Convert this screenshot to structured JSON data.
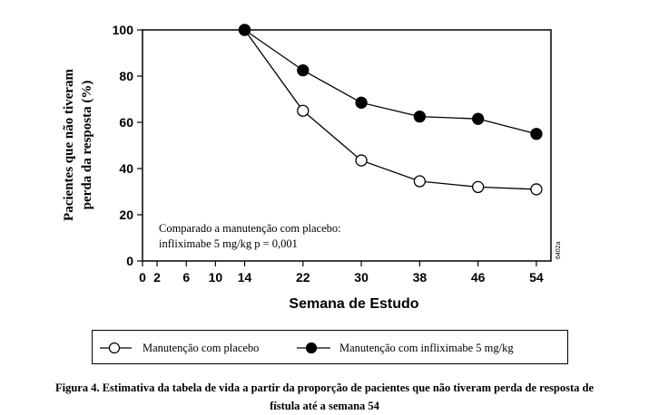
{
  "chart_data": {
    "type": "line",
    "xlabel": "Semana de Estudo",
    "ylabel": [
      "Pacientes que não tiveram",
      "perda da resposta (%)"
    ],
    "x_ticks": [
      0,
      2,
      6,
      10,
      14,
      22,
      30,
      38,
      46,
      54
    ],
    "y_ticks": [
      0,
      20,
      40,
      60,
      80,
      100
    ],
    "xlim": [
      0,
      56
    ],
    "ylim": [
      0,
      100
    ],
    "series": [
      {
        "name": "Manutenção com placebo",
        "marker": "open-circle",
        "x": [
          14,
          22,
          30,
          38,
          46,
          54
        ],
        "y": [
          100,
          65,
          43.5,
          34.5,
          32,
          31
        ]
      },
      {
        "name": "Manutenção com infliximabe 5 mg/kg",
        "marker": "filled-circle",
        "x": [
          14,
          22,
          30,
          38,
          46,
          54
        ],
        "y": [
          100,
          82.5,
          68.5,
          62.5,
          61.5,
          55
        ]
      }
    ],
    "annotation": [
      "Comparado a manutenção com placebo:",
      "infliximabe  5 mg/kg  p = 0,001"
    ],
    "side_code": "6402a",
    "colors": {
      "line": "#000000",
      "open_marker_fill": "#ffffff",
      "filled_marker_fill": "#000000"
    }
  },
  "caption": {
    "line1": "Figura 4. Estimativa da tabela de vida a partir da proporção de pacientes que não tiveram perda de resposta de",
    "line2": "fístula até a semana 54"
  }
}
